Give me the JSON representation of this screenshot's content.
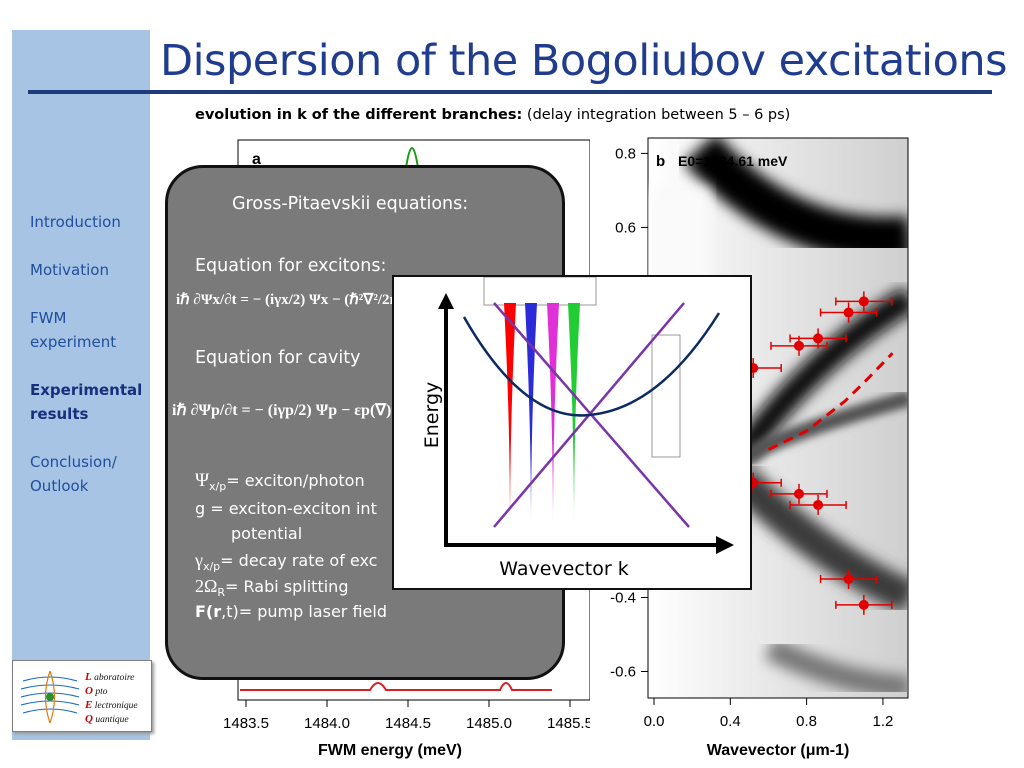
{
  "title": "Dispersion of the Bogoliubov excitations",
  "subtitle": {
    "bold": "evolution in k of the different branches:",
    "rest": " (delay integration between 5 – 6 ps)"
  },
  "sidebar": {
    "items": [
      {
        "label": "Introduction",
        "active": false
      },
      {
        "label": "Motivation",
        "active": false
      },
      {
        "label": "FWM experiment",
        "active": false
      },
      {
        "label": "Experimental results",
        "active": true
      },
      {
        "label": "Conclusion/ Outlook",
        "active": false
      }
    ]
  },
  "logo": {
    "lines": [
      "L aboratoire",
      "O pto",
      "E lectronique",
      "Q uantique"
    ]
  },
  "overlay": {
    "heading": "Gross-Pitaevskii equations:",
    "excitons_label": "Equation for excitons:",
    "cavity_label": "Equation for cavity",
    "eq_excitons": "iℏ ∂Ψx/∂t = − (iγx/2) Ψx − (ℏ²∇²/2mx) Ψx",
    "eq_cavity": "iℏ ∂Ψp/∂t = − (iγp/2) Ψp − εp(∇) ",
    "definitions": [
      {
        "sym": "Ψ",
        "sub": "x/p",
        "text": "= exciton/photon"
      },
      {
        "sym": "g",
        "sub": "",
        "text": " = exciton-exciton int"
      },
      {
        "sym": "",
        "sub": "",
        "text": "potential"
      },
      {
        "sym": "γ",
        "sub": "x/p",
        "text": "= decay rate of exc"
      },
      {
        "sym": "2Ω",
        "sub": "R",
        "text": "= Rabi splitting"
      },
      {
        "sym": "F(r",
        "sub": "",
        "text": ",t)= pump laser field"
      }
    ]
  },
  "diagram": {
    "ylabel": "Energy",
    "xlabel": "Wavevector k",
    "colors": {
      "red": "#ff0000",
      "blue": "#2b2bd8",
      "magenta": "#e030d8",
      "green": "#22cc33",
      "purple": "#7a33a8",
      "navy": "#0b2a63"
    }
  },
  "chart_data": [
    {
      "type": "line",
      "label": "a",
      "xlabel": "FWM energy (meV)",
      "xticks": [
        "1483.5",
        "1484.0",
        "1484.5",
        "1485.0",
        "1485.5"
      ],
      "xlim": [
        1483.5,
        1485.5
      ],
      "colors": {
        "trace": "#d42020",
        "peak": "#1a9a1a"
      }
    },
    {
      "type": "heatmap",
      "label": "b",
      "annotation": "E0=1484.61 meV",
      "xlabel": "Wavevector (μm-1)",
      "xticks": [
        "0.0",
        "0.4",
        "0.8",
        "1.2"
      ],
      "yticks": [
        "0.8",
        "0.6",
        "-0.4",
        "-0.6"
      ],
      "xlim": [
        0.0,
        1.3
      ],
      "ylim": [
        -0.65,
        0.82
      ],
      "points_upper": [
        {
          "x": 1.1,
          "y": 0.4
        },
        {
          "x": 1.02,
          "y": 0.37
        },
        {
          "x": 0.86,
          "y": 0.3
        },
        {
          "x": 0.76,
          "y": 0.28
        },
        {
          "x": 0.52,
          "y": 0.22
        }
      ],
      "points_lower": [
        {
          "x": 0.52,
          "y": -0.09
        },
        {
          "x": 0.76,
          "y": -0.12
        },
        {
          "x": 0.86,
          "y": -0.15
        },
        {
          "x": 1.02,
          "y": -0.35
        },
        {
          "x": 1.1,
          "y": -0.42
        }
      ],
      "dashed_curve": [
        {
          "x": 0.6,
          "y": 0.0
        },
        {
          "x": 0.8,
          "y": 0.05
        },
        {
          "x": 1.0,
          "y": 0.13
        },
        {
          "x": 1.1,
          "y": 0.18
        },
        {
          "x": 1.25,
          "y": 0.26
        }
      ],
      "colors": {
        "points": "#e00000",
        "dashed": "#e00000"
      }
    }
  ]
}
